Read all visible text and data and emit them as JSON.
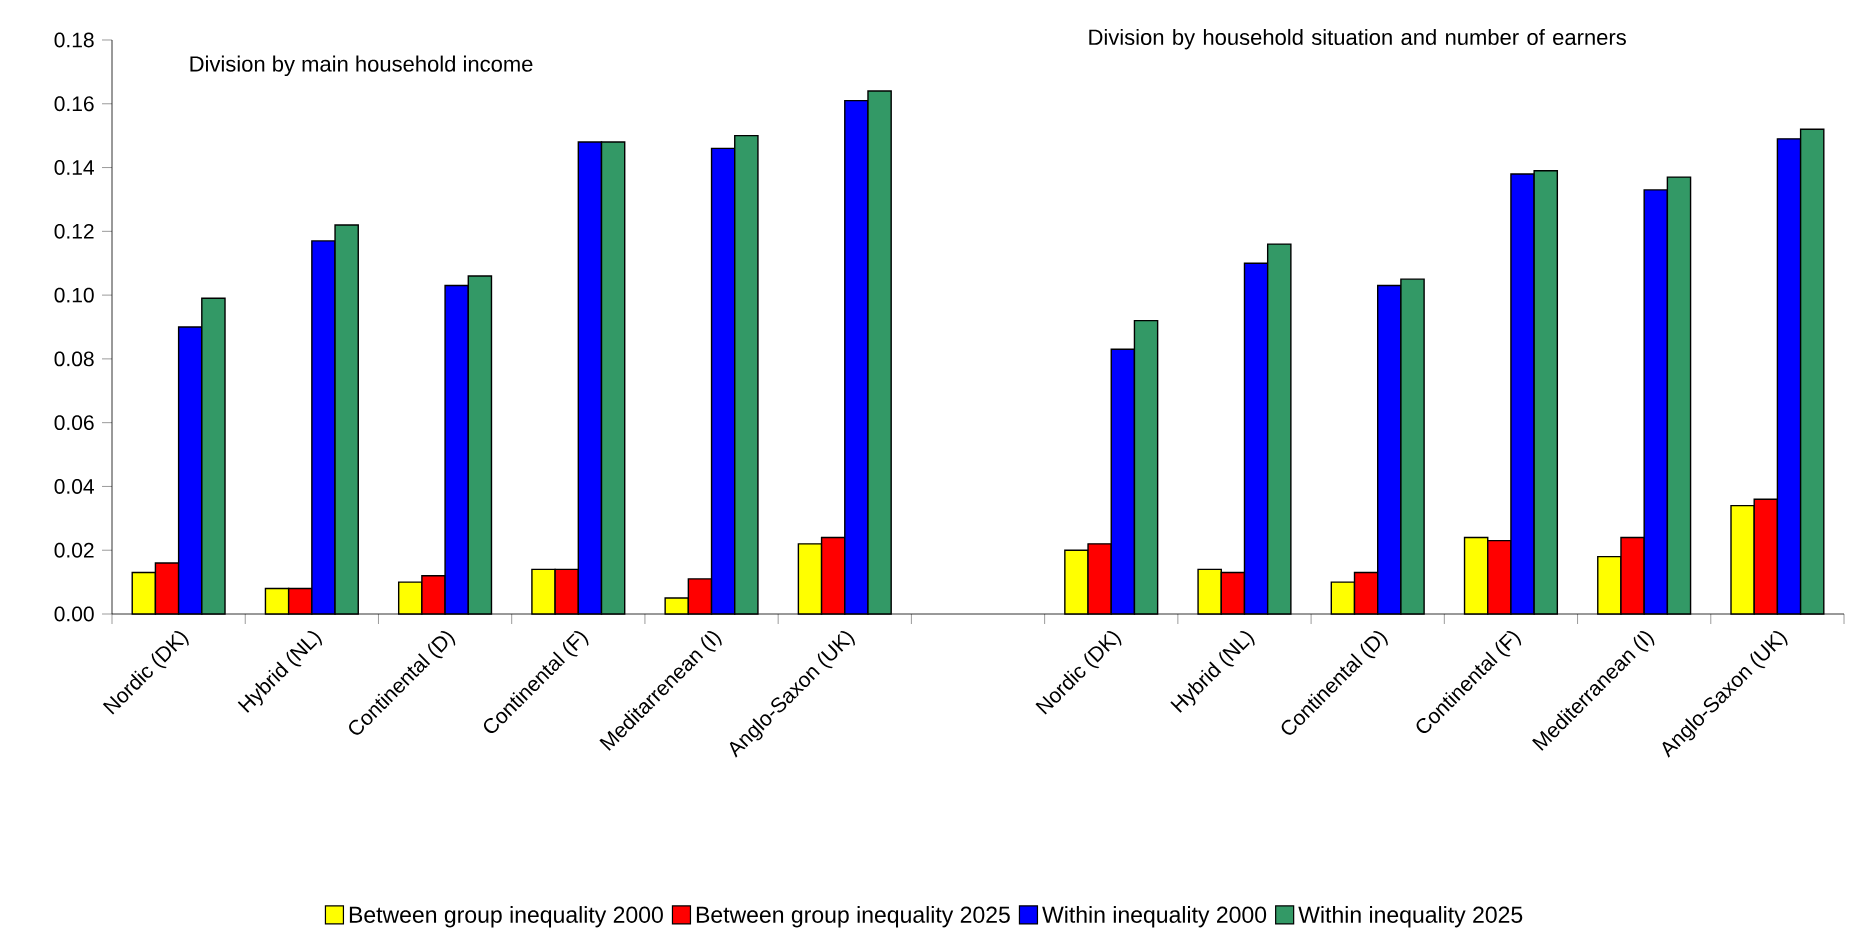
{
  "chart_data": {
    "type": "bar",
    "categories": [
      "Nordic (DK)",
      "Hybrid (NL)",
      "Continental (D)",
      "Continental (F)",
      "Meditarrenean (I)",
      "Anglo-Saxon (UK)",
      null,
      "Nordic (DK)",
      "Hybrid (NL)",
      "Continental (D)",
      "Continental (F)",
      "Mediterranean (I)",
      "Anglo-Saxon (UK)"
    ],
    "series": [
      {
        "name": "Between group inequality 2000",
        "color": "#ffff00",
        "values": [
          0.013,
          0.008,
          0.01,
          0.014,
          0.005,
          0.022,
          null,
          0.02,
          0.014,
          0.01,
          0.024,
          0.018,
          0.034
        ]
      },
      {
        "name": "Between group inequality 2025",
        "color": "#ff0000",
        "values": [
          0.016,
          0.008,
          0.012,
          0.014,
          0.011,
          0.024,
          null,
          0.022,
          0.013,
          0.013,
          0.023,
          0.024,
          0.036
        ]
      },
      {
        "name": "Within inequality 2000",
        "color": "#0000ff",
        "values": [
          0.09,
          0.117,
          0.103,
          0.148,
          0.146,
          0.161,
          null,
          0.083,
          0.11,
          0.103,
          0.138,
          0.133,
          0.149
        ]
      },
      {
        "name": "Within inequality 2025",
        "color": "#339966",
        "values": [
          0.099,
          0.122,
          0.106,
          0.148,
          0.15,
          0.164,
          null,
          0.092,
          0.116,
          0.105,
          0.139,
          0.137,
          0.152
        ]
      }
    ],
    "ylim": [
      0,
      0.18
    ],
    "yticks": [
      {
        "value": 0,
        "label": "0.00"
      },
      {
        "value": 0.02,
        "label": "0.02"
      },
      {
        "value": 0.04,
        "label": "0.04"
      },
      {
        "value": 0.06,
        "label": "0.06"
      },
      {
        "value": 0.08,
        "label": "0.08"
      },
      {
        "value": 0.1,
        "label": "0.10"
      },
      {
        "value": 0.12,
        "label": "0.12"
      },
      {
        "value": 0.14,
        "label": "0.14"
      },
      {
        "value": 0.16,
        "label": "0.16"
      },
      {
        "value": 0.18,
        "label": "0.18"
      }
    ],
    "annotations": [
      "Division by main household income",
      "Division by household situation and number of earners"
    ],
    "grid": false,
    "legend": "bottom"
  }
}
